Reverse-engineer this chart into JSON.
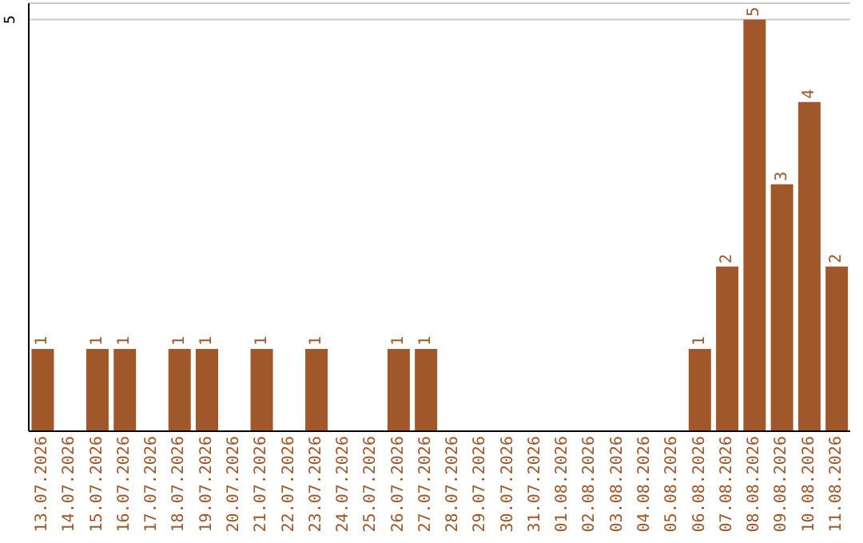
{
  "chart_data": {
    "type": "bar",
    "categories": [
      "13.07.2026",
      "14.07.2026",
      "15.07.2026",
      "16.07.2026",
      "17.07.2026",
      "18.07.2026",
      "19.07.2026",
      "20.07.2026",
      "21.07.2026",
      "22.07.2026",
      "23.07.2026",
      "24.07.2026",
      "25.07.2026",
      "26.07.2026",
      "27.07.2026",
      "28.07.2026",
      "29.07.2026",
      "30.07.2026",
      "31.07.2026",
      "01.08.2026",
      "02.08.2026",
      "03.08.2026",
      "04.08.2026",
      "05.08.2026",
      "06.08.2026",
      "07.08.2026",
      "08.08.2026",
      "09.08.2026",
      "10.08.2026",
      "11.08.2026"
    ],
    "values": [
      1,
      0,
      1,
      1,
      0,
      1,
      1,
      0,
      1,
      0,
      1,
      0,
      0,
      1,
      1,
      0,
      0,
      0,
      0,
      0,
      0,
      0,
      0,
      0,
      1,
      2,
      5,
      3,
      4,
      2
    ],
    "value_labels": [
      "1",
      null,
      "1",
      "1",
      null,
      "1",
      "1",
      null,
      "1",
      null,
      "1",
      null,
      null,
      "1",
      "1",
      null,
      null,
      null,
      null,
      null,
      null,
      null,
      null,
      null,
      "1",
      "2",
      "5",
      "3",
      "4",
      "2"
    ],
    "color": "#a0572a",
    "ylim": [
      0,
      5.2
    ],
    "yticks": [
      5
    ],
    "grid": "y"
  }
}
